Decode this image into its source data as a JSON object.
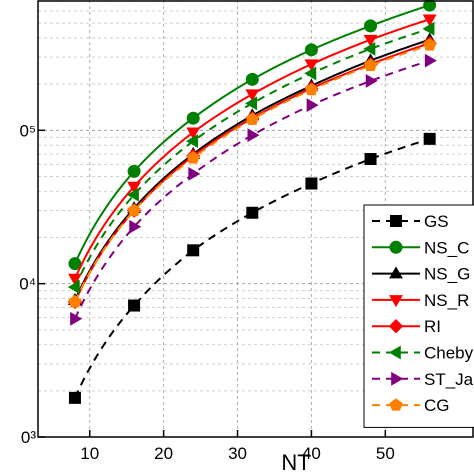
{
  "chart_data": {
    "type": "line",
    "title": "",
    "xlabel": "NT",
    "ylabel": "",
    "x": [
      8,
      16,
      24,
      32,
      40,
      48,
      56
    ],
    "xlim": [
      3,
      62
    ],
    "ylim_log10": [
      3,
      5.85
    ],
    "y_scale": "log",
    "x_ticks": [
      10,
      20,
      30,
      40,
      50
    ],
    "y_tick_labels": [
      {
        "label": "0³",
        "exp": 3
      },
      {
        "label": "0⁴",
        "exp": 4
      },
      {
        "label": "0⁵",
        "exp": 5
      }
    ],
    "grid": true,
    "legend_position": "right",
    "series": [
      {
        "name": "GS",
        "color": "#000000",
        "marker": "square",
        "dash": "8,6",
        "values": [
          1800,
          7200,
          16500,
          29000,
          45000,
          65000,
          88000
        ]
      },
      {
        "name": "NS_C",
        "color": "#008000",
        "marker": "circle",
        "dash": "",
        "values": [
          13500,
          54000,
          120000,
          215000,
          335000,
          480000,
          655000
        ]
      },
      {
        "name": "NS_G",
        "color": "#000000",
        "marker": "triangle-up",
        "dash": "",
        "values": [
          7800,
          31000,
          70000,
          125000,
          195000,
          285000,
          390000
        ]
      },
      {
        "name": "NS_R",
        "color": "#ff0000",
        "marker": "triangle-down",
        "dash": "",
        "values": [
          10800,
          43000,
          97000,
          172000,
          270000,
          390000,
          530000
        ]
      },
      {
        "name": "RI",
        "color": "#ff0000",
        "marker": "diamond",
        "dash": "",
        "values": [
          7600,
          30000,
          68000,
          120000,
          188000,
          270000,
          370000
        ]
      },
      {
        "name": "Cheby",
        "color": "#008000",
        "marker": "triangle-left",
        "dash": "8,6",
        "values": [
          9500,
          38000,
          85000,
          150000,
          235000,
          340000,
          460000
        ]
      },
      {
        "name": "ST_Ja",
        "color": "#800080",
        "marker": "triangle-right",
        "dash": "8,6",
        "values": [
          5900,
          23500,
          52000,
          93000,
          146000,
          210000,
          285000
        ]
      },
      {
        "name": "CG",
        "color": "#ff8000",
        "marker": "pentagon",
        "dash": "8,6",
        "values": [
          7600,
          30000,
          66000,
          118000,
          184000,
          265000,
          360000
        ]
      }
    ]
  }
}
